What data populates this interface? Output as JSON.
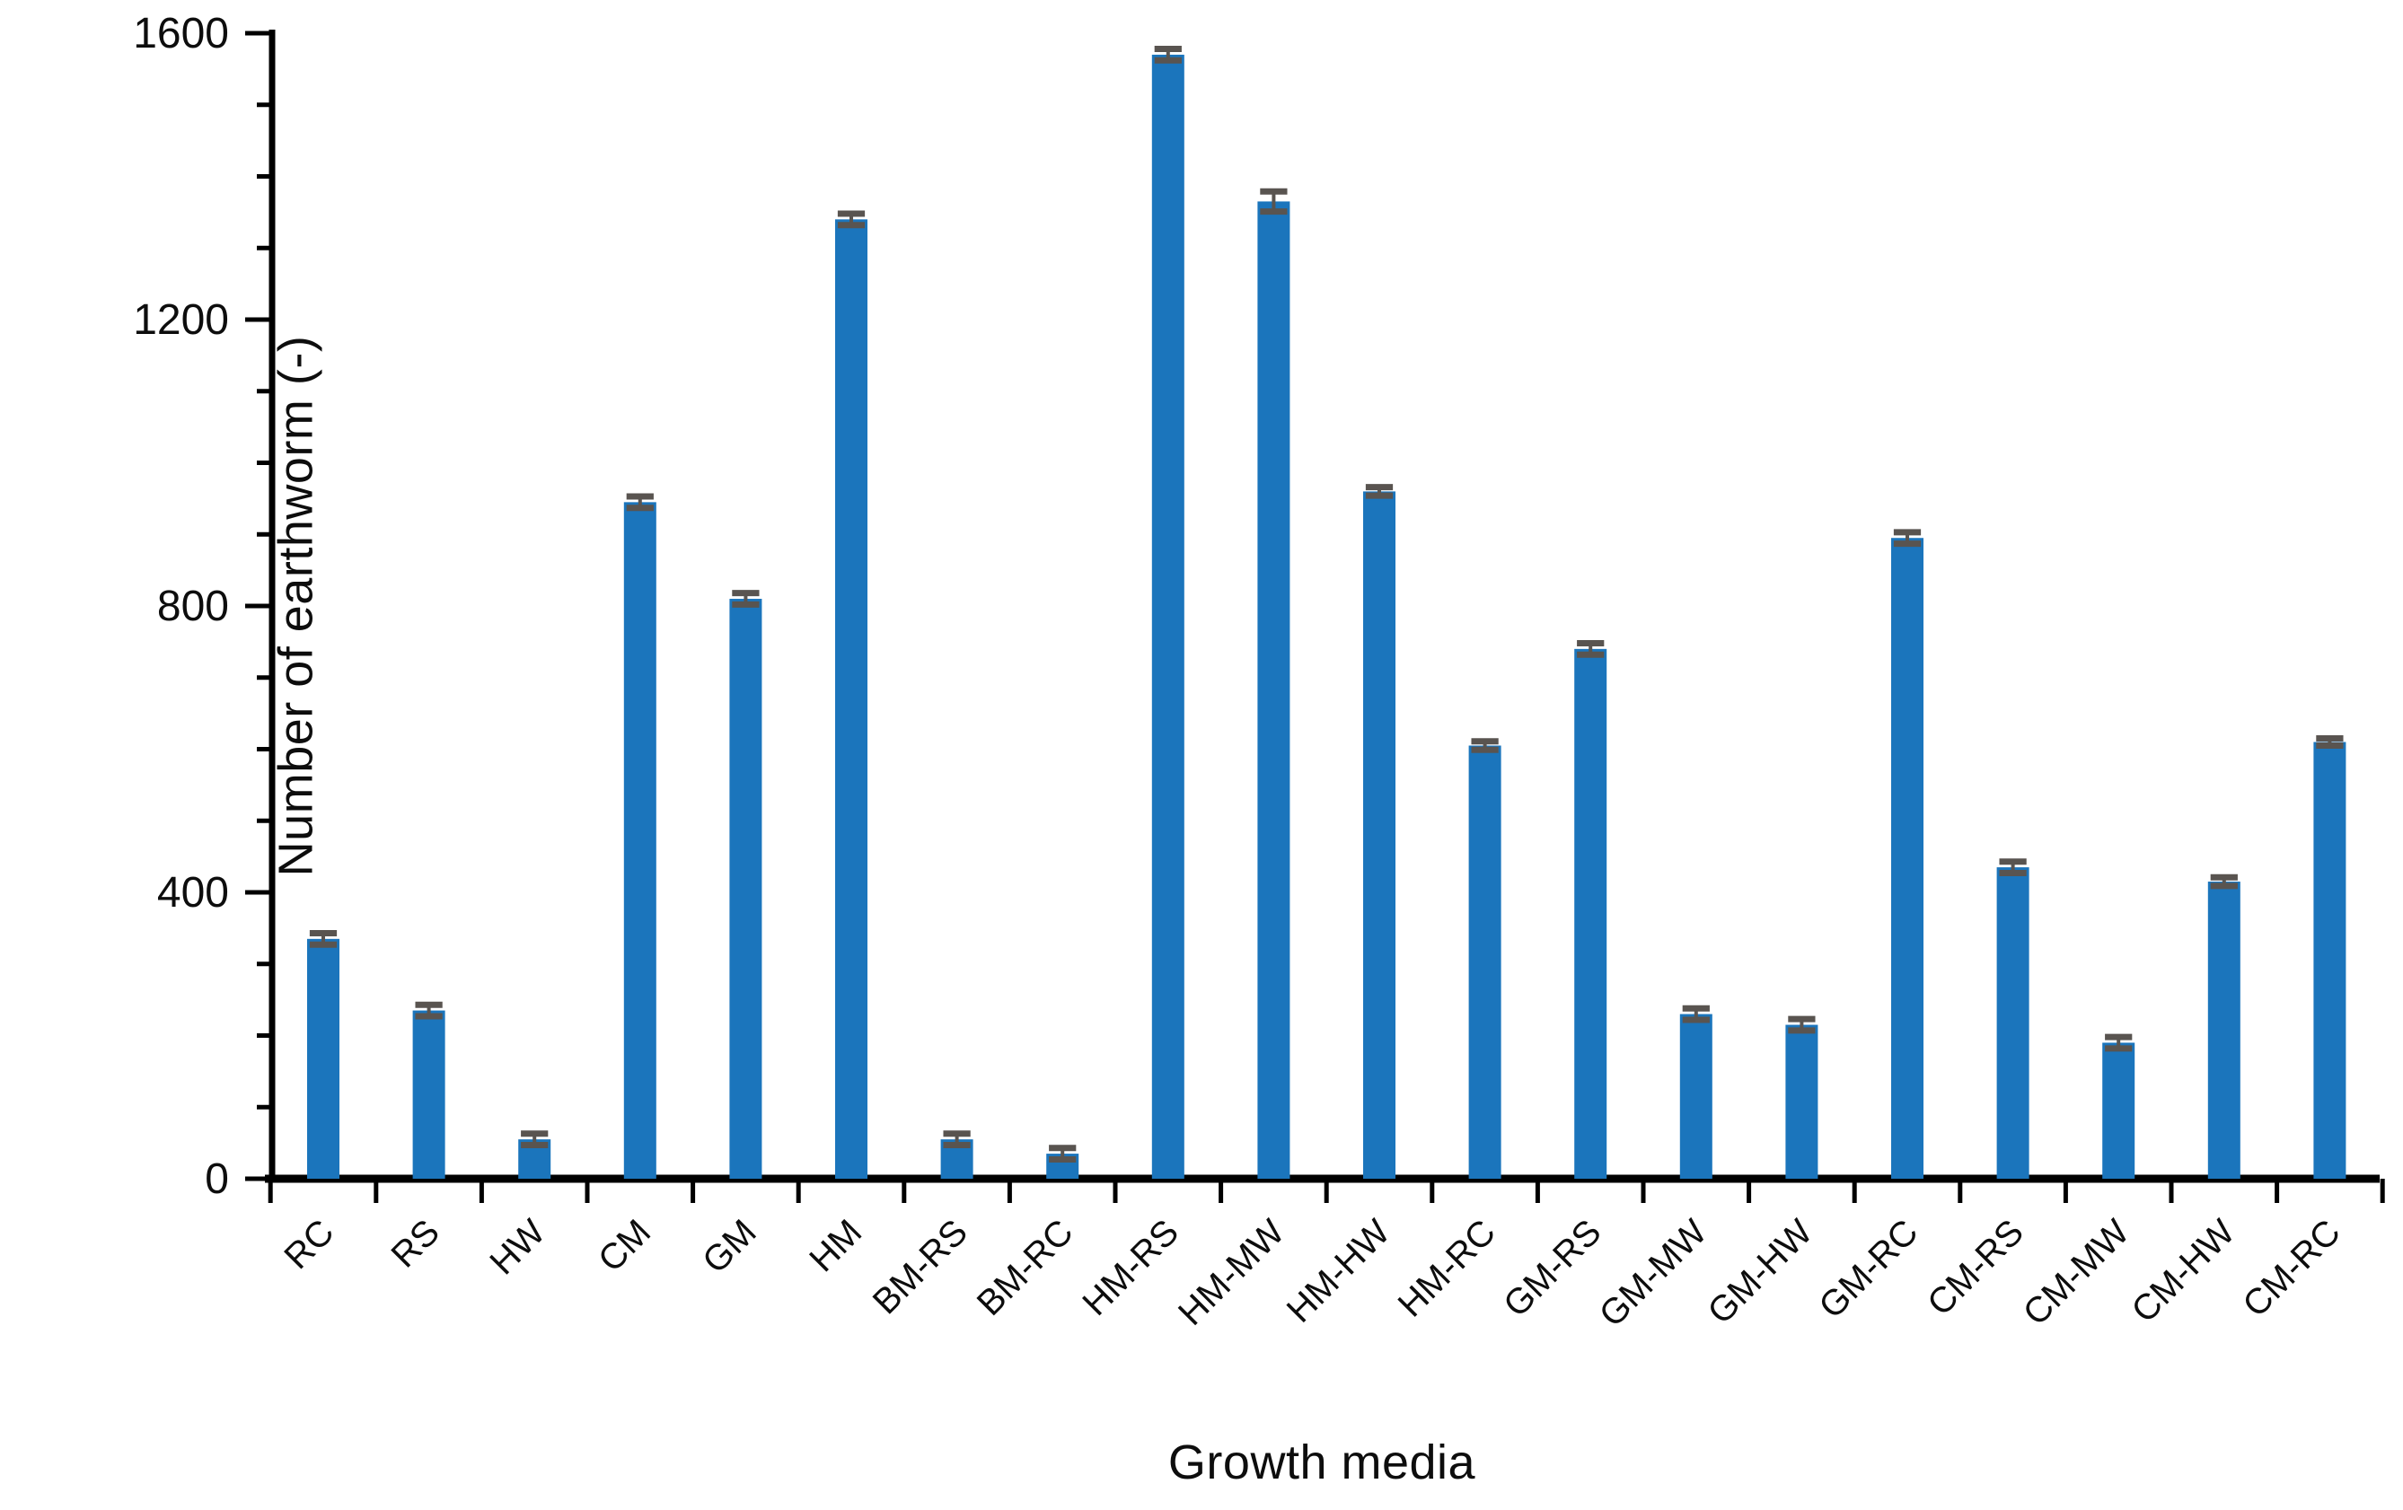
{
  "figure": {
    "x_axis_title": "Growth media",
    "y_axis_title": "Number of earthworm (-)"
  },
  "chart_data": {
    "type": "bar",
    "title": "",
    "xlabel": "Growth media",
    "ylabel": "Number of earthworm (-)",
    "categories": [
      "RC",
      "RS",
      "HW",
      "CM",
      "GM",
      "HM",
      "BM-RS",
      "BM-RC",
      "HM-RS",
      "HM-MW",
      "HM-HW",
      "HM-RC",
      "GM-RS",
      "GM-MW",
      "GM-HW",
      "GM-RC",
      "CM-RS",
      "CM-MW",
      "CM-HW",
      "CM-RC"
    ],
    "values": [
      335,
      235,
      55,
      945,
      810,
      1340,
      55,
      35,
      1570,
      1365,
      960,
      605,
      740,
      230,
      215,
      895,
      435,
      190,
      415,
      610
    ],
    "errors": [
      8,
      8,
      8,
      8,
      8,
      8,
      8,
      8,
      8,
      14,
      6,
      6,
      8,
      8,
      8,
      8,
      8,
      8,
      6,
      5
    ],
    "ylim": [
      0,
      1600
    ],
    "ytick_major_step": 400,
    "ytick_minor_step": 100,
    "ytick_labels": [
      "0",
      "400",
      "800",
      "1200",
      "1600"
    ],
    "grid": false,
    "legend": false,
    "bar_color": "#1B75BC",
    "error_color": "#595450",
    "axis_color": "#000000",
    "text_color": "#0d0d0d",
    "category_label_rotation_deg": 45
  }
}
